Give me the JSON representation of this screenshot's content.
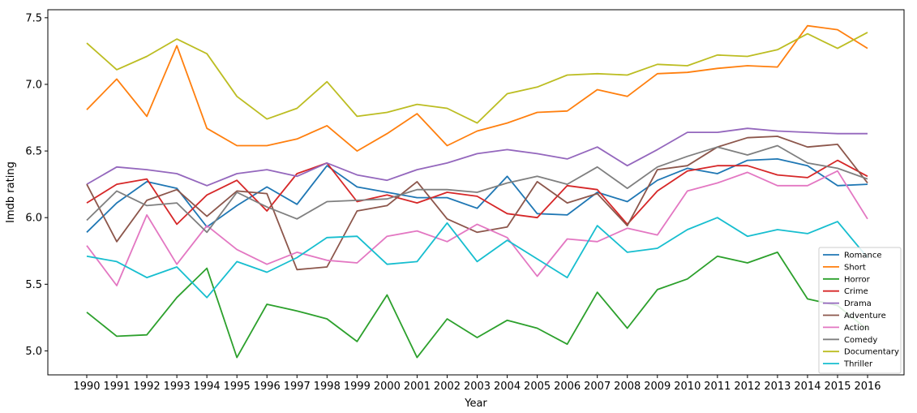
{
  "chart_data": {
    "type": "line",
    "title": "",
    "xlabel": "Year",
    "ylabel": "Imdb rating",
    "ylim": [
      4.82,
      7.56
    ],
    "yticks": [
      "5.0",
      "5.5",
      "6.0",
      "6.5",
      "7.0",
      "7.5"
    ],
    "grid": false,
    "legend_position": "lower-right",
    "x": [
      "1990",
      "1991",
      "1992",
      "1993",
      "1994",
      "1995",
      "1996",
      "1997",
      "1998",
      "1999",
      "2000",
      "2001",
      "2002",
      "2003",
      "2004",
      "2005",
      "2006",
      "2007",
      "2008",
      "2009",
      "2010",
      "2011",
      "2012",
      "2013",
      "2014",
      "2015",
      "2016"
    ],
    "series": [
      {
        "name": "Romance",
        "color": "#1f77b4",
        "values": [
          5.89,
          6.11,
          6.27,
          6.22,
          5.93,
          6.09,
          6.23,
          6.1,
          6.39,
          6.23,
          6.19,
          6.15,
          6.15,
          6.07,
          6.31,
          6.03,
          6.02,
          6.19,
          6.12,
          6.28,
          6.37,
          6.33,
          6.43,
          6.44,
          6.39,
          6.24,
          6.25
        ]
      },
      {
        "name": "Short",
        "color": "#ff7f0e",
        "values": [
          6.81,
          7.04,
          6.76,
          7.29,
          6.67,
          6.54,
          6.54,
          6.59,
          6.69,
          6.5,
          6.63,
          6.78,
          6.54,
          6.65,
          6.71,
          6.79,
          6.8,
          6.96,
          6.91,
          7.08,
          7.09,
          7.12,
          7.14,
          7.13,
          7.44,
          7.41,
          7.27
        ]
      },
      {
        "name": "Horror",
        "color": "#2ca02c",
        "values": [
          5.29,
          5.11,
          5.12,
          5.4,
          5.62,
          4.95,
          5.35,
          5.3,
          5.24,
          5.07,
          5.42,
          4.95,
          5.24,
          5.1,
          5.23,
          5.17,
          5.05,
          5.44,
          5.17,
          5.46,
          5.54,
          5.71,
          5.66,
          5.74,
          5.39,
          5.34,
          5.16
        ]
      },
      {
        "name": "Crime",
        "color": "#d62728",
        "values": [
          6.11,
          6.25,
          6.29,
          5.95,
          6.17,
          6.28,
          6.05,
          6.33,
          6.41,
          6.12,
          6.17,
          6.11,
          6.19,
          6.16,
          6.03,
          6.0,
          6.24,
          6.21,
          5.95,
          6.2,
          6.35,
          6.39,
          6.39,
          6.32,
          6.3,
          6.43,
          6.31
        ]
      },
      {
        "name": "Drama",
        "color": "#9467bd",
        "values": [
          6.25,
          6.38,
          6.36,
          6.33,
          6.24,
          6.33,
          6.36,
          6.31,
          6.41,
          6.32,
          6.28,
          6.36,
          6.41,
          6.48,
          6.51,
          6.48,
          6.44,
          6.53,
          6.39,
          6.51,
          6.64,
          6.64,
          6.67,
          6.65,
          6.64,
          6.63,
          6.63
        ]
      },
      {
        "name": "Adventure",
        "color": "#8c564b",
        "values": [
          6.25,
          5.82,
          6.13,
          6.21,
          6.01,
          6.2,
          6.18,
          5.61,
          5.63,
          6.05,
          6.09,
          6.27,
          5.99,
          5.89,
          5.93,
          6.27,
          6.11,
          6.18,
          5.94,
          6.36,
          6.39,
          6.53,
          6.6,
          6.61,
          6.53,
          6.55,
          6.26
        ]
      },
      {
        "name": "Action",
        "color": "#e377c2",
        "values": [
          5.79,
          5.49,
          6.02,
          5.65,
          5.94,
          5.76,
          5.65,
          5.74,
          5.68,
          5.66,
          5.86,
          5.9,
          5.82,
          5.95,
          5.85,
          5.56,
          5.84,
          5.82,
          5.92,
          5.87,
          6.2,
          6.26,
          6.34,
          6.24,
          6.24,
          6.35,
          5.99
        ]
      },
      {
        "name": "Comedy",
        "color": "#7f7f7f",
        "values": [
          5.98,
          6.2,
          6.09,
          6.11,
          5.89,
          6.19,
          6.08,
          5.99,
          6.12,
          6.13,
          6.14,
          6.21,
          6.21,
          6.19,
          6.26,
          6.31,
          6.25,
          6.38,
          6.22,
          6.38,
          6.46,
          6.53,
          6.47,
          6.54,
          6.41,
          6.37,
          6.29
        ]
      },
      {
        "name": "Documentary",
        "color": "#bcbd22",
        "values": [
          7.31,
          7.11,
          7.21,
          7.34,
          7.23,
          6.91,
          6.74,
          6.82,
          7.02,
          6.76,
          6.79,
          6.85,
          6.82,
          6.71,
          6.93,
          6.98,
          7.07,
          7.08,
          7.07,
          7.15,
          7.14,
          7.22,
          7.21,
          7.26,
          7.38,
          7.27,
          7.39
        ]
      },
      {
        "name": "Thriller",
        "color": "#17becf",
        "values": [
          5.71,
          5.67,
          5.55,
          5.63,
          5.4,
          5.67,
          5.59,
          5.7,
          5.85,
          5.86,
          5.65,
          5.67,
          5.96,
          5.67,
          5.83,
          5.69,
          5.55,
          5.94,
          5.74,
          5.77,
          5.91,
          6.0,
          5.86,
          5.91,
          5.88,
          5.97,
          5.7
        ]
      }
    ]
  }
}
